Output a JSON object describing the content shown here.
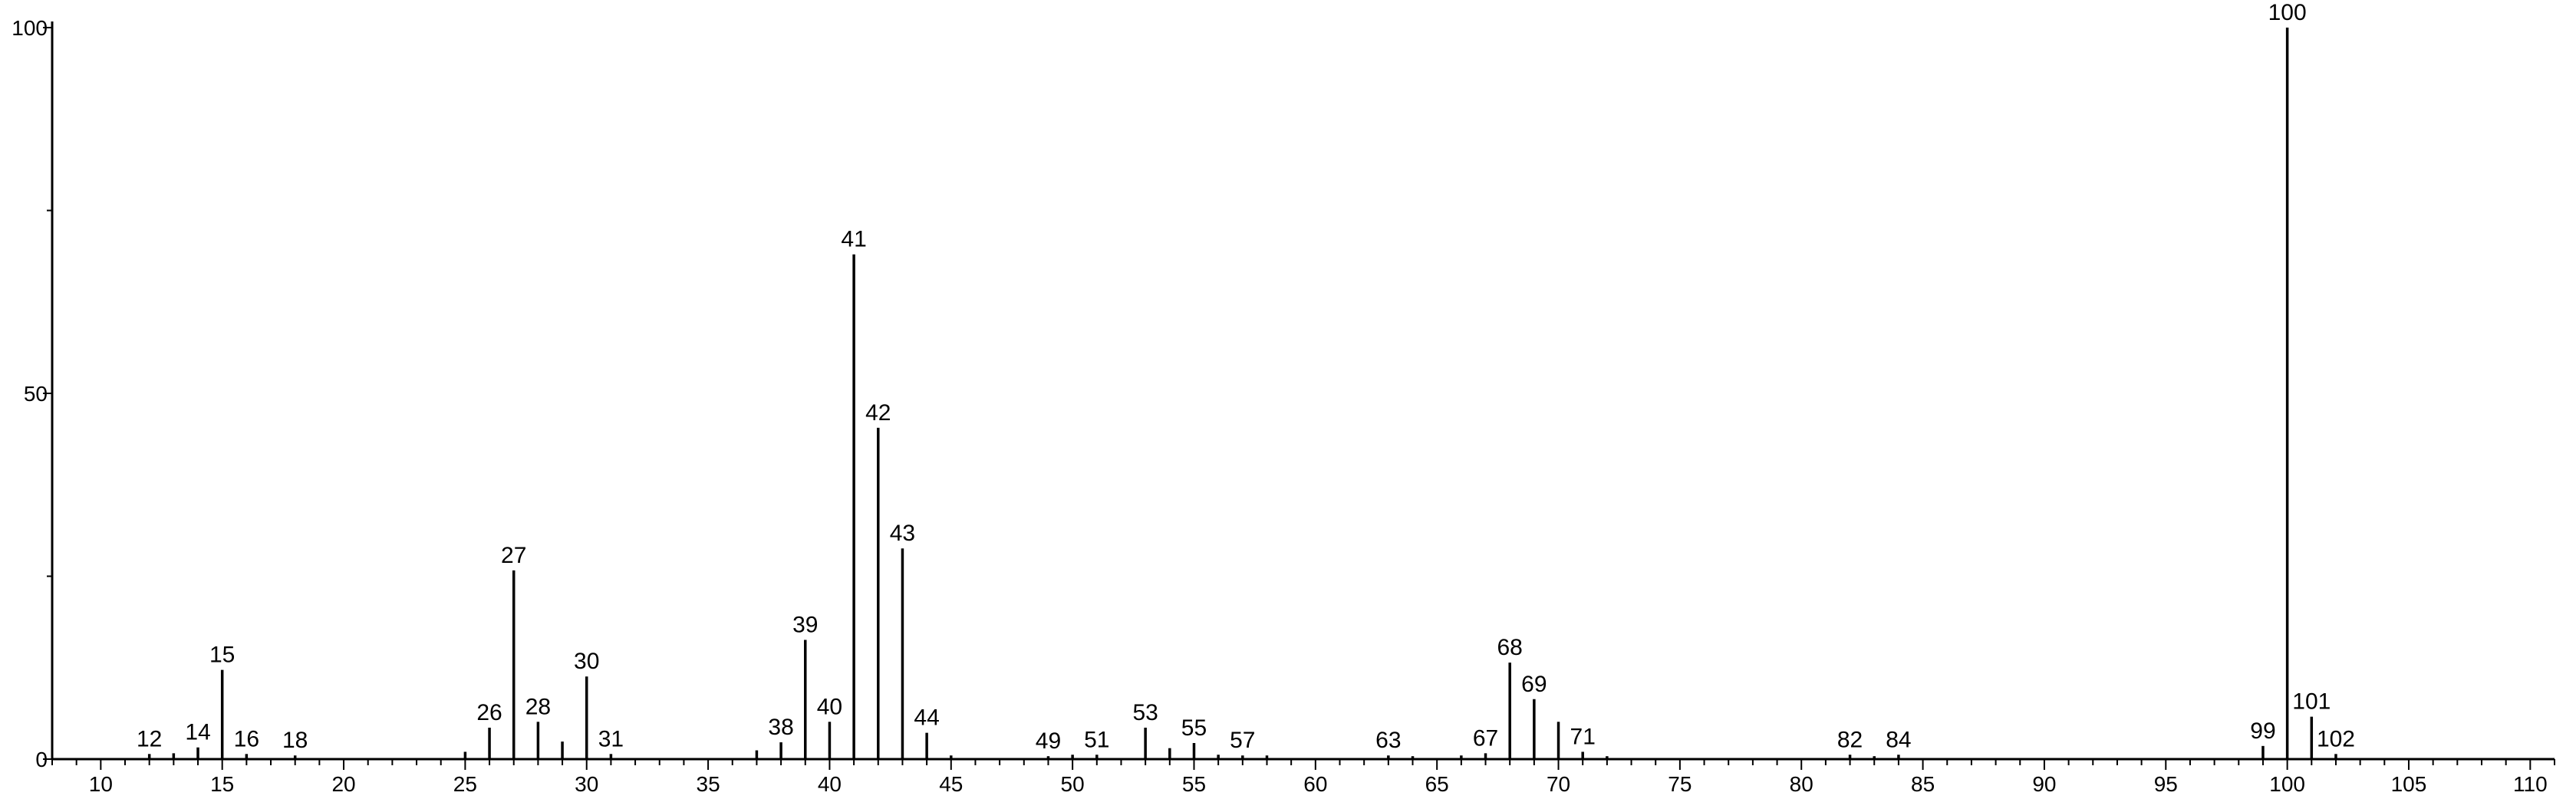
{
  "chart_data": {
    "type": "bar",
    "title": "",
    "xlabel": "",
    "ylabel": "",
    "xlim": [
      8,
      111
    ],
    "ylim": [
      0,
      100
    ],
    "x_ticks": [
      10,
      15,
      20,
      25,
      30,
      35,
      40,
      45,
      50,
      55,
      60,
      65,
      70,
      75,
      80,
      85,
      90,
      95,
      100,
      105,
      110
    ],
    "y_ticks": [
      0,
      50,
      100
    ],
    "grid": false,
    "legend": "none",
    "colors": {
      "line": "#000000",
      "background": "#ffffff"
    },
    "peaks": [
      {
        "x": 12,
        "y": 0.7,
        "label": "12"
      },
      {
        "x": 13,
        "y": 0.8
      },
      {
        "x": 14,
        "y": 1.6,
        "label": "14"
      },
      {
        "x": 15,
        "y": 12.2,
        "label": "15"
      },
      {
        "x": 16,
        "y": 0.7,
        "label": "16"
      },
      {
        "x": 18,
        "y": 0.5,
        "label": "18"
      },
      {
        "x": 25,
        "y": 1.0
      },
      {
        "x": 26,
        "y": 4.3,
        "label": "26"
      },
      {
        "x": 27,
        "y": 25.8,
        "label": "27"
      },
      {
        "x": 28,
        "y": 5.1,
        "label": "28"
      },
      {
        "x": 29,
        "y": 2.4
      },
      {
        "x": 30,
        "y": 11.3,
        "label": "30"
      },
      {
        "x": 31,
        "y": 0.7,
        "label": "31"
      },
      {
        "x": 37,
        "y": 1.2
      },
      {
        "x": 38,
        "y": 2.3,
        "label": "38"
      },
      {
        "x": 39,
        "y": 16.3,
        "label": "39"
      },
      {
        "x": 40,
        "y": 5.1,
        "label": "40"
      },
      {
        "x": 41,
        "y": 69.0,
        "label": "41"
      },
      {
        "x": 42,
        "y": 45.3,
        "label": "42"
      },
      {
        "x": 43,
        "y": 28.8,
        "label": "43"
      },
      {
        "x": 44,
        "y": 3.6,
        "label": "44"
      },
      {
        "x": 45,
        "y": 0.5
      },
      {
        "x": 49,
        "y": 0.4,
        "label": "49"
      },
      {
        "x": 50,
        "y": 0.6
      },
      {
        "x": 51,
        "y": 0.6,
        "label": "51"
      },
      {
        "x": 53,
        "y": 4.3,
        "label": "53"
      },
      {
        "x": 54,
        "y": 1.5
      },
      {
        "x": 55,
        "y": 2.2,
        "label": "55"
      },
      {
        "x": 56,
        "y": 0.6
      },
      {
        "x": 57,
        "y": 0.5,
        "label": "57"
      },
      {
        "x": 58,
        "y": 0.5
      },
      {
        "x": 63,
        "y": 0.5,
        "label": "63"
      },
      {
        "x": 64,
        "y": 0.4
      },
      {
        "x": 66,
        "y": 0.5
      },
      {
        "x": 67,
        "y": 0.8,
        "label": "67"
      },
      {
        "x": 68,
        "y": 13.2,
        "label": "68"
      },
      {
        "x": 69,
        "y": 8.2,
        "label": "69"
      },
      {
        "x": 70,
        "y": 5.1
      },
      {
        "x": 71,
        "y": 1.0,
        "label": "71"
      },
      {
        "x": 72,
        "y": 0.4
      },
      {
        "x": 82,
        "y": 0.6,
        "label": "82"
      },
      {
        "x": 83,
        "y": 0.4
      },
      {
        "x": 84,
        "y": 0.6,
        "label": "84"
      },
      {
        "x": 99,
        "y": 1.8,
        "label": "99"
      },
      {
        "x": 100,
        "y": 100.0,
        "label": "100"
      },
      {
        "x": 101,
        "y": 5.8,
        "label": "101"
      },
      {
        "x": 102,
        "y": 0.7,
        "label": "102"
      }
    ]
  }
}
